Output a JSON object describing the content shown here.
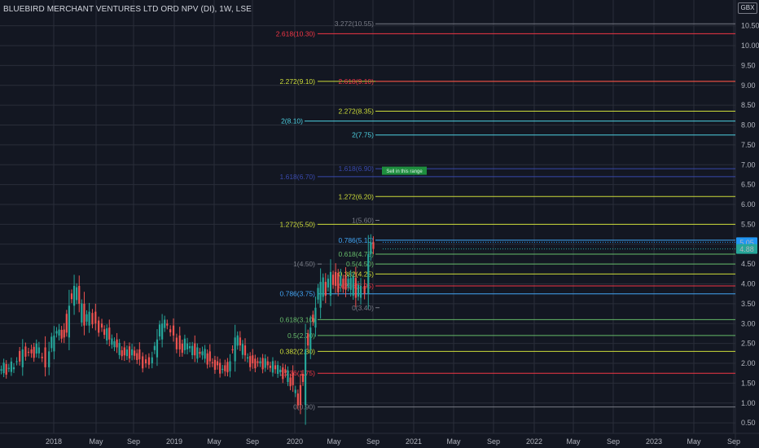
{
  "header": {
    "title": "BLUEBIRD MERCHANT VENTURES LTD ORD NPV (DI), 1W, LSE",
    "currency": "GBX"
  },
  "colors": {
    "background": "#131722",
    "grid": "#2a2e39",
    "up": "#26a69a",
    "down": "#ef5350",
    "axis_text": "#b2b5be"
  },
  "annotation": {
    "label": "Sell in this range",
    "color": "#1e8e3e"
  },
  "chart_data": {
    "type": "candlestick",
    "title": "BLUEBIRD MERCHANT VENTURES LTD ORD NPV (DI), 1W, LSE",
    "ylim": [
      0.4,
      10.8
    ],
    "y_ticks": [
      0.5,
      1.0,
      1.5,
      2.0,
      2.5,
      3.0,
      3.5,
      4.0,
      4.5,
      5.0,
      5.5,
      6.0,
      6.5,
      7.0,
      7.5,
      8.0,
      8.5,
      9.0,
      9.5,
      10.0,
      10.5
    ],
    "x_ticks": [
      "2018",
      "May",
      "Sep",
      "2019",
      "May",
      "Sep",
      "2020",
      "May",
      "Sep",
      "2021",
      "May",
      "Sep",
      "2022",
      "May",
      "Sep",
      "2023",
      "May",
      "Sep"
    ],
    "price_labels": [
      {
        "value": "5.05",
        "price": 5.05,
        "color": "#2196f3"
      },
      {
        "value": "4.88",
        "price": 4.88,
        "color": "#26a69a"
      }
    ],
    "close_path": [
      [
        2017.8,
        1.85
      ],
      [
        2017.9,
        1.9
      ],
      [
        2017.97,
        2.35
      ],
      [
        2018.04,
        2.25
      ],
      [
        2018.1,
        2.4
      ],
      [
        2018.15,
        1.9
      ],
      [
        2018.18,
        2.3
      ],
      [
        2018.22,
        2.7
      ],
      [
        2018.26,
        2.85
      ],
      [
        2018.3,
        2.65
      ],
      [
        2018.34,
        3.45
      ],
      [
        2018.38,
        3.95
      ],
      [
        2018.42,
        3.5
      ],
      [
        2018.46,
        2.95
      ],
      [
        2018.5,
        3.3
      ],
      [
        2018.55,
        3.0
      ],
      [
        2018.6,
        2.9
      ],
      [
        2018.66,
        2.6
      ],
      [
        2018.72,
        2.4
      ],
      [
        2018.78,
        2.2
      ],
      [
        2018.84,
        2.35
      ],
      [
        2018.9,
        2.1
      ],
      [
        2018.95,
        2.0
      ],
      [
        2019.0,
        2.15
      ],
      [
        2019.04,
        2.6
      ],
      [
        2019.08,
        3.0
      ],
      [
        2019.12,
        2.95
      ],
      [
        2019.17,
        2.7
      ],
      [
        2019.22,
        2.35
      ],
      [
        2019.28,
        2.5
      ],
      [
        2019.34,
        2.2
      ],
      [
        2019.4,
        2.3
      ],
      [
        2019.46,
        2.05
      ],
      [
        2019.52,
        1.95
      ],
      [
        2019.58,
        1.8
      ],
      [
        2019.62,
        2.05
      ],
      [
        2019.66,
        2.65
      ],
      [
        2019.7,
        2.45
      ],
      [
        2019.74,
        2.2
      ],
      [
        2019.8,
        2.0
      ],
      [
        2019.86,
        2.05
      ],
      [
        2019.92,
        1.95
      ],
      [
        2019.98,
        1.85
      ],
      [
        2020.06,
        1.75
      ],
      [
        2020.12,
        1.45
      ],
      [
        2020.18,
        0.95
      ],
      [
        2020.22,
        2.35
      ],
      [
        2020.26,
        2.9
      ],
      [
        2020.3,
        3.4
      ],
      [
        2020.34,
        4.05
      ],
      [
        2020.38,
        3.7
      ],
      [
        2020.42,
        4.3
      ],
      [
        2020.46,
        3.95
      ],
      [
        2020.5,
        4.2
      ],
      [
        2020.54,
        3.85
      ],
      [
        2020.58,
        4.15
      ],
      [
        2020.62,
        3.65
      ],
      [
        2020.66,
        3.95
      ],
      [
        2020.69,
        3.75
      ],
      [
        2020.72,
        4.75
      ],
      [
        2020.74,
        5.05
      ],
      [
        2020.76,
        4.88
      ]
    ],
    "fibonacci_levels": [
      {
        "label": "3.272(10.55)",
        "price": 10.55,
        "color": "#787b86"
      },
      {
        "label": "2.618(10.30)",
        "price": 10.3,
        "color": "#f23645"
      },
      {
        "label": "2.272(9.10)",
        "price": 9.1,
        "color": "#cddc39"
      },
      {
        "label": "2.618(9.10)",
        "price": 9.1,
        "color": "#f23645"
      },
      {
        "label": "2.272(8.35)",
        "price": 8.35,
        "color": "#cddc39"
      },
      {
        "label": "2(8.10)",
        "price": 8.1,
        "color": "#4dd0e1"
      },
      {
        "label": "2(7.75)",
        "price": 7.75,
        "color": "#4dd0e1"
      },
      {
        "label": "1.618(6.90)",
        "price": 6.9,
        "color": "#3949ab"
      },
      {
        "label": "1.618(6.70)",
        "price": 6.7,
        "color": "#3949ab"
      },
      {
        "label": "1.272(6.20)",
        "price": 6.2,
        "color": "#cddc39"
      },
      {
        "label": "1(5.60)",
        "price": 5.6,
        "color": "#787b86"
      },
      {
        "label": "1.272(5.50)",
        "price": 5.5,
        "color": "#cddc39"
      },
      {
        "label": "0.786(5.10)",
        "price": 5.1,
        "color": "#42a5f5"
      },
      {
        "label": "0.618(4.75)",
        "price": 4.75,
        "color": "#66bb6a"
      },
      {
        "label": "0.5(4.50)",
        "price": 4.5,
        "color": "#66bb6a"
      },
      {
        "label": "1(4.50)",
        "price": 4.5,
        "color": "#787b86"
      },
      {
        "label": "0.382(4.25)",
        "price": 4.25,
        "color": "#cddc39"
      },
      {
        "label": "0.236(3.95)",
        "price": 3.95,
        "color": "#f23645"
      },
      {
        "label": "0.786(3.75)",
        "price": 3.75,
        "color": "#42a5f5"
      },
      {
        "label": "0(3.40)",
        "price": 3.4,
        "color": "#787b86"
      },
      {
        "label": "0.618(3.10)",
        "price": 3.1,
        "color": "#66bb6a"
      },
      {
        "label": "0.5(2.70)",
        "price": 2.7,
        "color": "#66bb6a"
      },
      {
        "label": "0.382(2.30)",
        "price": 2.3,
        "color": "#cddc39"
      },
      {
        "label": "0.236(1.75)",
        "price": 1.75,
        "color": "#f23645"
      },
      {
        "label": "0(0.90)",
        "price": 0.9,
        "color": "#787b86"
      }
    ]
  }
}
